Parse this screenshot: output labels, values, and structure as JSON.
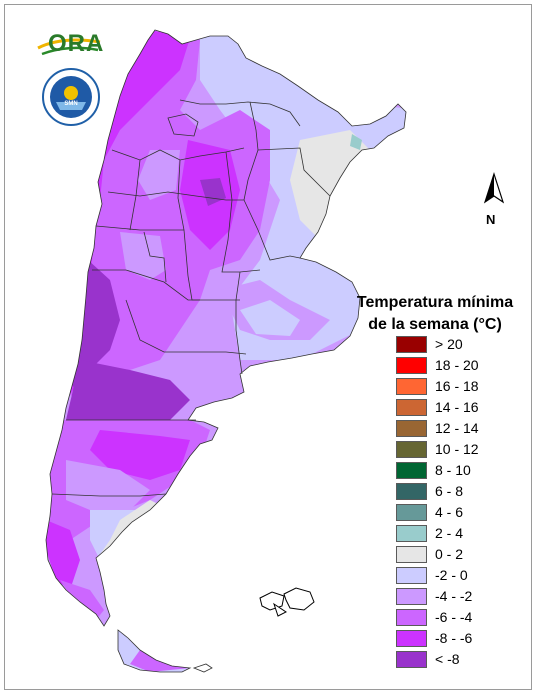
{
  "logo": {
    "text": "ORA",
    "seal_text": "SERVICIO METEOROLOGICO NACIONAL · ARGENTINA"
  },
  "north_label": "N",
  "legend": {
    "title_line1": "Temperatura mínima",
    "title_line2": "de la semana (°C)",
    "classes": [
      {
        "label": "> 20",
        "color": "#990000"
      },
      {
        "label": "18 - 20",
        "color": "#ff0000"
      },
      {
        "label": "16 - 18",
        "color": "#ff6633"
      },
      {
        "label": "14 - 16",
        "color": "#cc6633"
      },
      {
        "label": "12 - 14",
        "color": "#996633"
      },
      {
        "label": "10 - 12",
        "color": "#666633"
      },
      {
        "label": "8 - 10",
        "color": "#006633"
      },
      {
        "label": "6 - 8",
        "color": "#336666"
      },
      {
        "label": "4 - 6",
        "color": "#669999"
      },
      {
        "label": "2 - 4",
        "color": "#99cccc"
      },
      {
        "label": "0 - 2",
        "color": "#e6e6e6"
      },
      {
        "label": "-2 - 0",
        "color": "#ccccff"
      },
      {
        "label": "-4 - -2",
        "color": "#cc99ff"
      },
      {
        "label": "-6 - -4",
        "color": "#cc66ff"
      },
      {
        "label": "-8 - -6",
        "color": "#cc33ff"
      },
      {
        "label": "< -8",
        "color": "#9933cc"
      }
    ]
  },
  "map_colors": {
    "class_0_2": "#e6e6e6",
    "class_m2_0": "#ccccff",
    "class_m4_m2": "#cc99ff",
    "class_m6_m4": "#cc66ff",
    "class_m8_m6": "#cc33ff",
    "class_lt_m8": "#9933cc",
    "class_2_4": "#99cccc",
    "boundary": "#333333"
  }
}
